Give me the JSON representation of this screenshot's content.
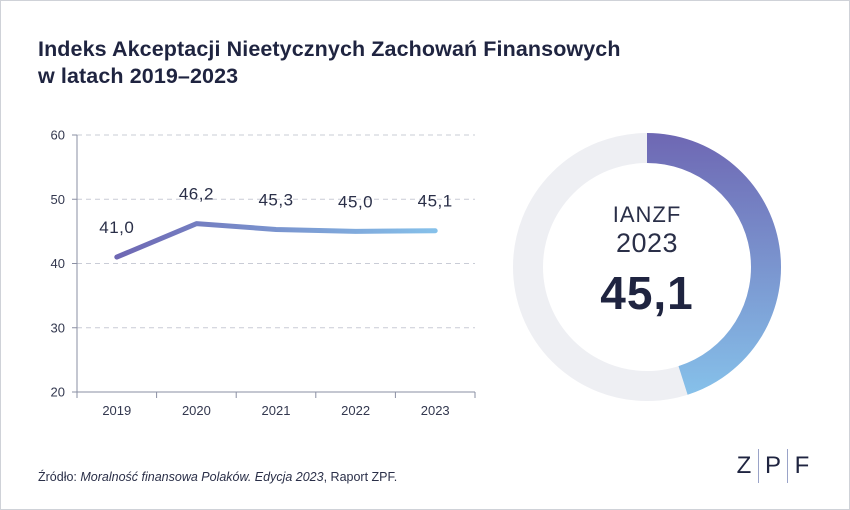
{
  "title_lines": [
    "Indeks Akceptacji Nieetycznych Zachowań Finansowych",
    "w latach 2019–2023"
  ],
  "chart_data": [
    {
      "type": "line",
      "x": [
        "2019",
        "2020",
        "2021",
        "2022",
        "2023"
      ],
      "series": [
        {
          "values": [
            41.0,
            46.2,
            45.3,
            45.0,
            45.1
          ]
        }
      ],
      "data_labels": [
        "41,0",
        "46,2",
        "45,3",
        "45,0",
        "45,1"
      ],
      "yticks": [
        "20",
        "30",
        "40",
        "50",
        "60"
      ],
      "ylim": [
        20,
        60
      ],
      "grid": true,
      "colors": {
        "line_start": "#6e67b3",
        "line_end": "#86c1ea"
      }
    },
    {
      "type": "pie",
      "style": "donut",
      "title": "IANZF",
      "subtitle": "2023",
      "value": 45.1,
      "value_label": "45,1",
      "max": 100,
      "colors": {
        "arc_start": "#6e67b3",
        "arc_end": "#86c1ea",
        "track": "#eeeff3"
      }
    }
  ],
  "source": {
    "prefix": "Źródło: ",
    "italic": "Moralność finansowa Polaków. Edycja 2023",
    "suffix": ", Raport ZPF."
  },
  "logo": {
    "letters": [
      "Z",
      "P",
      "F"
    ]
  }
}
